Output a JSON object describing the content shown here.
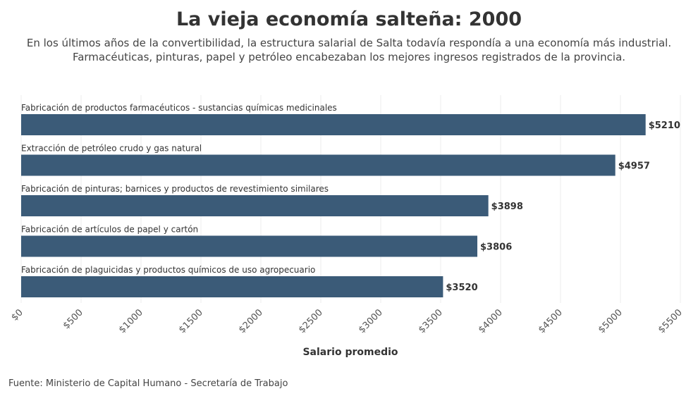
{
  "chart_data": {
    "type": "barh",
    "title": "La vieja economía salteña: 2000",
    "subtitle": [
      "En los últimos años de la convertibilidad, la estructura salarial de Salta todavía respondía a una economía más industrial.",
      "Farmacéuticas, pinturas, papel y petróleo encabezaban los mejores ingresos registrados de la provincia."
    ],
    "categories": [
      "Fabricación de productos farmacéuticos - sustancias químicas medicinales",
      "Extracción de petróleo crudo y gas natural",
      "Fabricación de pinturas; barnices y productos de revestimiento similares",
      "Fabricación de artículos de papel y cartón",
      "Fabricación de plaguicidas y productos químicos de uso agropecuario"
    ],
    "values": [
      5210,
      4957,
      3898,
      3806,
      3520
    ],
    "value_labels": [
      "$5210",
      "$4957",
      "$3898",
      "$3806",
      "$3520"
    ],
    "color": "#3b5b78",
    "xlim": [
      0,
      5500
    ],
    "xticks": [
      {
        "value": 0,
        "label": "$0"
      },
      {
        "value": 500,
        "label": "$500"
      },
      {
        "value": 1000,
        "label": "$1000"
      },
      {
        "value": 1500,
        "label": "$1500"
      },
      {
        "value": 2000,
        "label": "$2000"
      },
      {
        "value": 2500,
        "label": "$2500"
      },
      {
        "value": 3000,
        "label": "$3000"
      },
      {
        "value": 3500,
        "label": "$3500"
      },
      {
        "value": 4000,
        "label": "$4000"
      },
      {
        "value": 4500,
        "label": "$4500"
      },
      {
        "value": 5000,
        "label": "$5000"
      },
      {
        "value": 5500,
        "label": "$5500"
      }
    ],
    "xlabel": "Salario promedio",
    "grid": true,
    "source": "Fuente: Ministerio de Capital Humano - Secretaría de Trabajo"
  }
}
